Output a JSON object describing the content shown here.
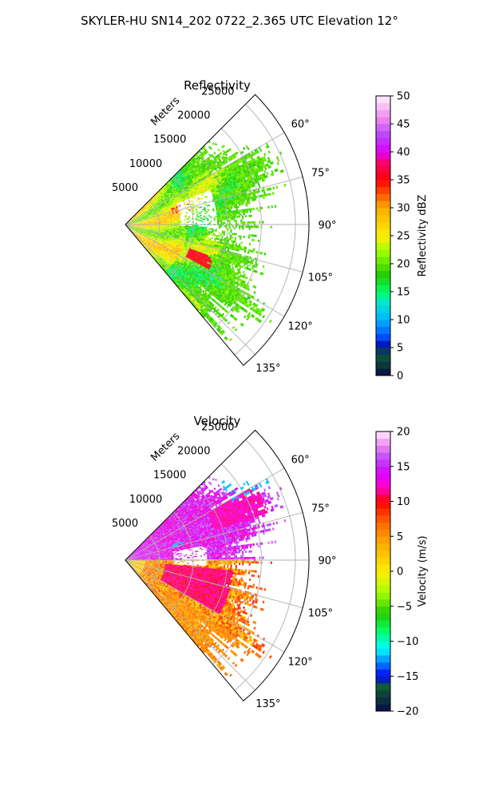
{
  "figure": {
    "suptitle": "SKYLER-HU  SN14_202  0722_2.365 UTC Elevation 12°"
  },
  "chart_data": [
    {
      "type": "heatmap",
      "projection": "polar-sector",
      "title": "Reflectivity",
      "radial_label": "Meters",
      "range_ticks": [
        "5000",
        "10000",
        "15000",
        "20000",
        "25000"
      ],
      "range_tick_values": [
        5000,
        10000,
        15000,
        20000,
        25000
      ],
      "rlim": [
        0,
        27000
      ],
      "azimuth_ticks": [
        "60°",
        "75°",
        "90°",
        "105°",
        "120°",
        "135°"
      ],
      "azimuth_tick_values": [
        60,
        75,
        90,
        105,
        120,
        135
      ],
      "azimuth_range": [
        45,
        140
      ],
      "grid": true,
      "colorbar": {
        "label": "Reflectivity dBZ",
        "min": 0,
        "max": 50,
        "ticks": [
          "0",
          "5",
          "10",
          "15",
          "20",
          "25",
          "30",
          "35",
          "40",
          "45",
          "50"
        ],
        "tick_values": [
          0,
          5,
          10,
          15,
          20,
          25,
          30,
          35,
          40,
          45,
          50
        ],
        "stops": [
          {
            "v": 0,
            "c": "#0a0a4a"
          },
          {
            "v": 2,
            "c": "#0c3a3a"
          },
          {
            "v": 4,
            "c": "#0e5a3a"
          },
          {
            "v": 5,
            "c": "#0000a0"
          },
          {
            "v": 7,
            "c": "#0050ff"
          },
          {
            "v": 10,
            "c": "#00b4ff"
          },
          {
            "v": 13,
            "c": "#00e6d2"
          },
          {
            "v": 15,
            "c": "#00ff66"
          },
          {
            "v": 18,
            "c": "#22cc00"
          },
          {
            "v": 22,
            "c": "#99ff00"
          },
          {
            "v": 25,
            "c": "#ffee00"
          },
          {
            "v": 30,
            "c": "#ffaa00"
          },
          {
            "v": 35,
            "c": "#ff0000"
          },
          {
            "v": 38,
            "c": "#ff0066"
          },
          {
            "v": 40,
            "c": "#dd00ff"
          },
          {
            "v": 43,
            "c": "#bb44ff"
          },
          {
            "v": 46,
            "c": "#ee88ee"
          },
          {
            "v": 50,
            "c": "#fff0ff"
          }
        ]
      },
      "field_levels": {
        "base": 20,
        "low": 18,
        "high": 26,
        "cell": 36
      }
    },
    {
      "type": "heatmap",
      "projection": "polar-sector",
      "title": "Velocity",
      "radial_label": "Meters",
      "range_ticks": [
        "5000",
        "10000",
        "15000",
        "20000",
        "25000"
      ],
      "range_tick_values": [
        5000,
        10000,
        15000,
        20000,
        25000
      ],
      "rlim": [
        0,
        27000
      ],
      "azimuth_ticks": [
        "60°",
        "75°",
        "90°",
        "105°",
        "120°",
        "135°"
      ],
      "azimuth_tick_values": [
        60,
        75,
        90,
        105,
        120,
        135
      ],
      "azimuth_range": [
        45,
        140
      ],
      "grid": true,
      "colorbar": {
        "label": "Velocity (m/s)",
        "min": -20,
        "max": 20,
        "ticks": [
          "−20",
          "−15",
          "−10",
          "−5",
          "0",
          "5",
          "10",
          "15",
          "20"
        ],
        "tick_values": [
          -20,
          -15,
          -10,
          -5,
          0,
          5,
          10,
          15,
          20
        ],
        "stops": [
          {
            "v": -20,
            "c": "#0a0a4a"
          },
          {
            "v": -18,
            "c": "#0c3a3a"
          },
          {
            "v": -16.5,
            "c": "#0e5a3a"
          },
          {
            "v": -15,
            "c": "#0000ff"
          },
          {
            "v": -13,
            "c": "#0088ff"
          },
          {
            "v": -11,
            "c": "#00ffff"
          },
          {
            "v": -8.5,
            "c": "#00ff66"
          },
          {
            "v": -6,
            "c": "#22cc00"
          },
          {
            "v": -3,
            "c": "#aaff00"
          },
          {
            "v": 0,
            "c": "#ffee00"
          },
          {
            "v": 4,
            "c": "#ffaa00"
          },
          {
            "v": 7,
            "c": "#ff6600"
          },
          {
            "v": 10,
            "c": "#ff0000"
          },
          {
            "v": 12,
            "c": "#ff00cc"
          },
          {
            "v": 14,
            "c": "#dd00ff"
          },
          {
            "v": 16,
            "c": "#bb44ff"
          },
          {
            "v": 18,
            "c": "#ee88ee"
          },
          {
            "v": 20,
            "c": "#fff0ff"
          }
        ]
      },
      "field_levels": {
        "north": 13,
        "south": 5,
        "far": 9,
        "core": 10,
        "jet": -12
      }
    }
  ]
}
